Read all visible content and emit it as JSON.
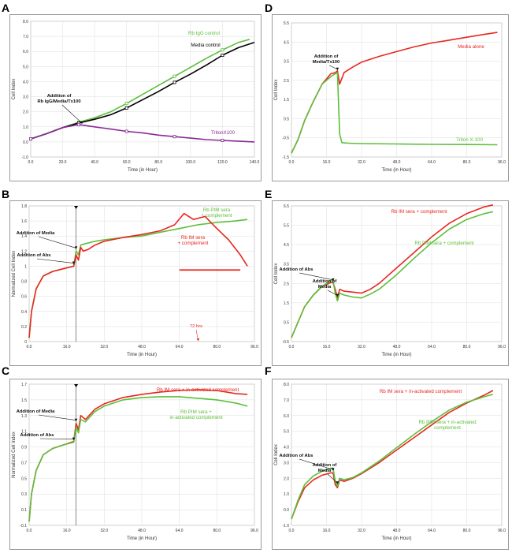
{
  "panels": [
    {
      "letter": "A"
    },
    {
      "letter": "D"
    },
    {
      "letter": "B"
    },
    {
      "letter": "E"
    },
    {
      "letter": "C"
    },
    {
      "letter": "F"
    }
  ],
  "chart_data": [
    {
      "id": "A",
      "type": "line",
      "xlabel": "Time (in Hour)",
      "ylabel": "Cell Index",
      "xlim": [
        0,
        140
      ],
      "ylim": [
        -1,
        8
      ],
      "xticks": [
        "0.0",
        "20.0",
        "40.0",
        "60.0",
        "80.0",
        "100.0",
        "120.0",
        "140.0"
      ],
      "yticks": [
        "-1.0",
        "0.0",
        "1.0",
        "2.0",
        "3.0",
        "4.0",
        "5.0",
        "6.0",
        "7.0",
        "8.0"
      ],
      "series": [
        {
          "name": "Rb IgG control",
          "color": "#5cbf3a",
          "x": [
            0,
            10,
            20,
            30,
            40,
            50,
            60,
            70,
            80,
            90,
            100,
            110,
            120,
            130,
            137
          ],
          "y": [
            0.2,
            0.55,
            0.95,
            1.3,
            1.6,
            2.0,
            2.55,
            3.15,
            3.75,
            4.35,
            4.95,
            5.55,
            6.1,
            6.6,
            6.8
          ]
        },
        {
          "name": "Media control",
          "color": "#000000",
          "x": [
            0,
            10,
            20,
            30,
            40,
            50,
            60,
            70,
            80,
            90,
            100,
            110,
            120,
            130,
            140
          ],
          "y": [
            0.2,
            0.55,
            0.95,
            1.25,
            1.5,
            1.8,
            2.25,
            2.8,
            3.35,
            3.95,
            4.5,
            5.1,
            5.75,
            6.25,
            6.6
          ]
        },
        {
          "name": "TritonX100",
          "color": "#8b2a96",
          "x": [
            0,
            10,
            20,
            30,
            40,
            50,
            60,
            70,
            80,
            90,
            100,
            110,
            120,
            130,
            140
          ],
          "y": [
            0.2,
            0.55,
            0.95,
            1.15,
            1.0,
            0.85,
            0.7,
            0.6,
            0.45,
            0.35,
            0.25,
            0.15,
            0.1,
            0.05,
            0.0
          ]
        }
      ],
      "annotations": [
        {
          "text": "Addition of",
          "text2": "Rb IgG/Media/Tx100",
          "x": 32
        }
      ]
    },
    {
      "id": "D",
      "type": "line",
      "xlabel": "Time (in Hour)",
      "ylabel": "Cell Index",
      "xlim": [
        0,
        96
      ],
      "ylim": [
        -1.5,
        5.5
      ],
      "xticks": [
        "0.0",
        "16.0",
        "32.0",
        "48.0",
        "64.0",
        "80.0",
        "96.0"
      ],
      "yticks": [
        "-1.5",
        "-0.5",
        "0.5",
        "1.5",
        "2.5",
        "3.5",
        "4.5",
        "5.5"
      ],
      "series": [
        {
          "name": "Media alone",
          "color": "#e8271f",
          "x": [
            0,
            3,
            6,
            10,
            14,
            18,
            20,
            21,
            22,
            24,
            28,
            32,
            40,
            48,
            56,
            64,
            72,
            80,
            88,
            94
          ],
          "y": [
            -1.3,
            -0.6,
            0.4,
            1.4,
            2.3,
            2.85,
            2.9,
            3.0,
            2.3,
            2.9,
            3.2,
            3.45,
            3.75,
            4.0,
            4.25,
            4.45,
            4.6,
            4.75,
            4.9,
            5.0
          ]
        },
        {
          "name": "Triton X-100",
          "color": "#5cbf3a",
          "x": [
            0,
            3,
            6,
            10,
            14,
            18,
            20,
            21,
            22,
            23,
            26,
            32,
            48,
            64,
            80,
            94
          ],
          "y": [
            -1.3,
            -0.6,
            0.4,
            1.4,
            2.3,
            2.7,
            2.85,
            2.9,
            -0.3,
            -0.75,
            -0.78,
            -0.8,
            -0.82,
            -0.84,
            -0.85,
            -0.86
          ]
        }
      ],
      "annotations": [
        {
          "text": "Addition of",
          "text2": "Media/Tx100",
          "x": 21
        }
      ]
    },
    {
      "id": "B",
      "type": "line",
      "xlabel": "Time (in Hour)",
      "ylabel": "Normalized Cell Index",
      "xlim": [
        0,
        96
      ],
      "ylim": [
        0,
        1.8
      ],
      "xticks": [
        "0.0",
        "16.0",
        "32.0",
        "48.0",
        "64.0",
        "80.0",
        "96.0"
      ],
      "yticks": [
        "0",
        "0.2",
        "0.4",
        "0.6",
        "0.8",
        "1",
        "1.2",
        "1.4",
        "1.6",
        "1.8"
      ],
      "series": [
        {
          "name": "Rb PIM sera + complement",
          "color": "#5cbf3a",
          "x": [
            0,
            1,
            3,
            6,
            10,
            15,
            19,
            20,
            21,
            22,
            24,
            28,
            32,
            40,
            48,
            56,
            64,
            72,
            80,
            88,
            93
          ],
          "y": [
            0.05,
            0.4,
            0.7,
            0.87,
            0.93,
            0.97,
            1.0,
            1.2,
            1.15,
            1.28,
            1.3,
            1.33,
            1.35,
            1.38,
            1.4,
            1.45,
            1.5,
            1.55,
            1.58,
            1.6,
            1.62
          ]
        },
        {
          "name": "Rb IM sera + complement",
          "color": "#e8271f",
          "x": [
            0,
            1,
            3,
            6,
            10,
            15,
            19,
            20,
            21,
            22,
            23,
            25,
            28,
            32,
            40,
            48,
            56,
            62,
            66,
            70,
            75,
            80,
            85,
            90,
            93
          ],
          "y": [
            0.05,
            0.4,
            0.7,
            0.87,
            0.93,
            0.97,
            1.0,
            1.15,
            1.08,
            1.25,
            1.2,
            1.22,
            1.28,
            1.33,
            1.38,
            1.42,
            1.47,
            1.55,
            1.7,
            1.62,
            1.66,
            1.5,
            1.35,
            1.15,
            1.0
          ]
        }
      ],
      "annotations": [
        {
          "text": "Addition of Media",
          "x": 20
        },
        {
          "text": "Addition of Abs",
          "x": 19
        },
        {
          "text": "72 hrs",
          "x": 72
        }
      ],
      "red_bar": [
        64,
        90,
        0.95
      ]
    },
    {
      "id": "E",
      "type": "line",
      "xlabel": "Time (in Hour)",
      "ylabel": "Cell Index",
      "xlim": [
        0,
        96
      ],
      "ylim": [
        -0.5,
        6.5
      ],
      "xticks": [
        "0.0",
        "16.0",
        "32.0",
        "48.0",
        "64.0",
        "80.0",
        "96.0"
      ],
      "yticks": [
        "-0.5",
        "0.5",
        "1.5",
        "2.5",
        "3.5",
        "4.5",
        "5.5",
        "6.5"
      ],
      "series": [
        {
          "name": "Rb IM sera + complement",
          "color": "#e8271f",
          "x": [
            0,
            3,
            6,
            10,
            14,
            18,
            19,
            20,
            21,
            22,
            24,
            28,
            32,
            36,
            40,
            48,
            56,
            64,
            72,
            80,
            88,
            92
          ],
          "y": [
            -0.3,
            0.5,
            1.3,
            1.9,
            2.35,
            2.55,
            2.55,
            2.2,
            1.75,
            2.2,
            2.1,
            2.05,
            2.0,
            2.2,
            2.5,
            3.3,
            4.1,
            4.9,
            5.6,
            6.1,
            6.45,
            6.55
          ]
        },
        {
          "name": "Rb PIM sera + complement",
          "color": "#5cbf3a",
          "x": [
            0,
            3,
            6,
            10,
            14,
            18,
            19,
            20,
            21,
            22,
            24,
            28,
            32,
            36,
            40,
            48,
            56,
            64,
            72,
            80,
            88,
            92
          ],
          "y": [
            -0.3,
            0.5,
            1.3,
            1.9,
            2.35,
            2.65,
            2.65,
            2.0,
            1.6,
            2.0,
            1.9,
            1.8,
            1.75,
            1.95,
            2.2,
            2.95,
            3.8,
            4.6,
            5.3,
            5.8,
            6.1,
            6.2
          ]
        }
      ],
      "annotations": [
        {
          "text": "Addition of Abs",
          "x": 19
        },
        {
          "text": "Addition of",
          "text2": "Media",
          "x": 21
        }
      ]
    },
    {
      "id": "C",
      "type": "line",
      "xlabel": "Time (in Hour)",
      "ylabel": "Normalized Cell Index",
      "xlim": [
        0,
        96
      ],
      "ylim": [
        -0.1,
        1.7
      ],
      "xticks": [
        "0.0",
        "16.0",
        "32.0",
        "48.0",
        "64.0",
        "80.0",
        "96.0"
      ],
      "yticks": [
        "-0.1",
        "0.1",
        "0.3",
        "0.5",
        "0.7",
        "0.9",
        "1.1",
        "1.3",
        "1.5",
        "1.7"
      ],
      "series": [
        {
          "name": "Rb IM sera + in-activated complement",
          "color": "#e8271f",
          "x": [
            0,
            1,
            3,
            6,
            10,
            15,
            19,
            20,
            21,
            22,
            24,
            28,
            32,
            40,
            48,
            56,
            64,
            72,
            80,
            88,
            93
          ],
          "y": [
            -0.05,
            0.3,
            0.6,
            0.8,
            0.88,
            0.93,
            0.97,
            1.2,
            1.12,
            1.3,
            1.25,
            1.38,
            1.45,
            1.53,
            1.57,
            1.6,
            1.62,
            1.63,
            1.62,
            1.58,
            1.57
          ]
        },
        {
          "name": "Rb PIM sera + in-activated complement",
          "color": "#5cbf3a",
          "x": [
            0,
            1,
            3,
            6,
            10,
            15,
            19,
            20,
            21,
            22,
            24,
            28,
            32,
            40,
            48,
            56,
            64,
            72,
            80,
            88,
            93
          ],
          "y": [
            -0.05,
            0.3,
            0.6,
            0.8,
            0.88,
            0.93,
            0.96,
            1.15,
            1.08,
            1.25,
            1.22,
            1.35,
            1.42,
            1.5,
            1.53,
            1.54,
            1.54,
            1.52,
            1.5,
            1.46,
            1.42
          ]
        }
      ],
      "annotations": [
        {
          "text": "Addition of Media",
          "x": 20
        },
        {
          "text": "Addition of Abs",
          "x": 19
        }
      ]
    },
    {
      "id": "F",
      "type": "line",
      "xlabel": "Time (in Hour)",
      "ylabel": "Cell Index",
      "xlim": [
        0,
        96
      ],
      "ylim": [
        -1,
        8
      ],
      "xticks": [
        "0.0",
        "16.0",
        "32.0",
        "48.0",
        "64.0",
        "80.0",
        "96.0"
      ],
      "yticks": [
        "-1.0",
        "0.0",
        "1.0",
        "2.0",
        "3.0",
        "4.0",
        "5.0",
        "6.0",
        "7.0",
        "8.0"
      ],
      "series": [
        {
          "name": "Rb IM sera + in-activated complement",
          "color": "#e8271f",
          "x": [
            0,
            3,
            6,
            10,
            14,
            18,
            19,
            20,
            21,
            22,
            24,
            28,
            32,
            40,
            48,
            56,
            64,
            72,
            80,
            88,
            92
          ],
          "y": [
            -0.6,
            0.5,
            1.4,
            1.9,
            2.2,
            2.35,
            2.35,
            1.6,
            1.4,
            1.9,
            1.8,
            2.0,
            2.3,
            3.0,
            3.8,
            4.6,
            5.4,
            6.2,
            6.8,
            7.3,
            7.6
          ]
        },
        {
          "name": "Rb PIM sera + in-activated complement",
          "color": "#5cbf3a",
          "x": [
            0,
            3,
            6,
            10,
            14,
            18,
            19,
            20,
            21,
            22,
            24,
            28,
            32,
            40,
            48,
            56,
            64,
            72,
            80,
            88,
            92
          ],
          "y": [
            -0.6,
            0.6,
            1.6,
            2.15,
            2.45,
            2.65,
            2.65,
            1.8,
            1.5,
            2.0,
            1.9,
            2.05,
            2.35,
            3.1,
            3.95,
            4.8,
            5.6,
            6.35,
            6.85,
            7.2,
            7.35
          ]
        }
      ],
      "annotations": [
        {
          "text": "Addition of Abs",
          "x": 19
        },
        {
          "text": "Addition of",
          "text2": "Media",
          "x": 21
        }
      ]
    }
  ]
}
